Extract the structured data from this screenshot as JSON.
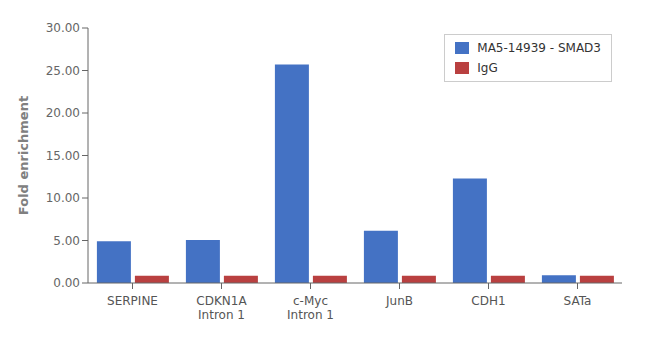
{
  "chart_data": {
    "type": "bar",
    "categories": [
      "SERPINE",
      "CDKN1A\nIntron 1",
      "c-Myc\nIntron 1",
      "JunB",
      "CDH1",
      "SATa"
    ],
    "series": [
      {
        "name": "MA5-14939 - SMAD3",
        "color": "#4472C4",
        "values": [
          4.9,
          5.05,
          25.7,
          6.15,
          12.3,
          0.9
        ]
      },
      {
        "name": "IgG",
        "color": "#B94040",
        "values": [
          0.85,
          0.85,
          0.85,
          0.85,
          0.85,
          0.85
        ]
      }
    ],
    "ylabel": "Fold enrichment",
    "ylim": [
      0,
      30
    ],
    "yticks": [
      {
        "value": 0,
        "label": "0.00"
      },
      {
        "value": 5,
        "label": "5.00"
      },
      {
        "value": 10,
        "label": "10.00"
      },
      {
        "value": 15,
        "label": "15.00"
      },
      {
        "value": 20,
        "label": "20.00"
      },
      {
        "value": 25,
        "label": "25.00"
      },
      {
        "value": 30,
        "label": "30.00"
      }
    ],
    "grid": false,
    "legend": "upper right"
  }
}
